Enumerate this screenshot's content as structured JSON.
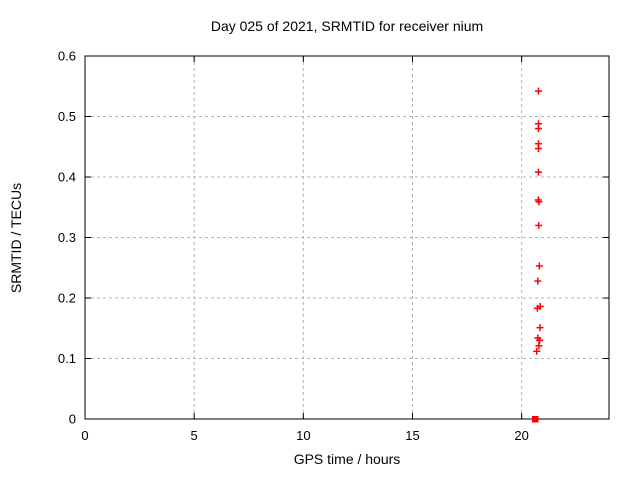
{
  "chart_data": {
    "type": "scatter",
    "title": "Day 025 of 2021, SRMTID for receiver nium",
    "xlabel": "GPS time / hours",
    "ylabel": "SRMTID / TECUs",
    "xlim": [
      0,
      24
    ],
    "ylim": [
      0,
      0.6
    ],
    "xticks": [
      0,
      5,
      10,
      15,
      20
    ],
    "yticks": [
      0,
      0.1,
      0.2,
      0.3,
      0.4,
      0.5,
      0.6
    ],
    "grid": true,
    "legend_position": "none",
    "marker_style": "plus",
    "marker_color": "#ff0000",
    "grid_color": "#b4b4b4",
    "border_color": "#000000",
    "series": [
      {
        "name": "SRMTID",
        "points": [
          [
            20.77,
            0.542
          ],
          [
            20.77,
            0.488
          ],
          [
            20.77,
            0.48
          ],
          [
            20.77,
            0.455
          ],
          [
            20.77,
            0.447
          ],
          [
            20.77,
            0.408
          ],
          [
            20.76,
            0.362
          ],
          [
            20.79,
            0.359
          ],
          [
            20.78,
            0.32
          ],
          [
            20.81,
            0.253
          ],
          [
            20.74,
            0.228
          ],
          [
            20.85,
            0.186
          ],
          [
            20.72,
            0.183
          ],
          [
            20.84,
            0.151
          ],
          [
            20.74,
            0.134
          ],
          [
            20.82,
            0.13
          ],
          [
            20.79,
            0.121
          ],
          [
            20.69,
            0.112
          ]
        ]
      }
    ],
    "zero_cluster": {
      "x": 20.61,
      "y": 0.0,
      "shape": "filled-square"
    }
  }
}
